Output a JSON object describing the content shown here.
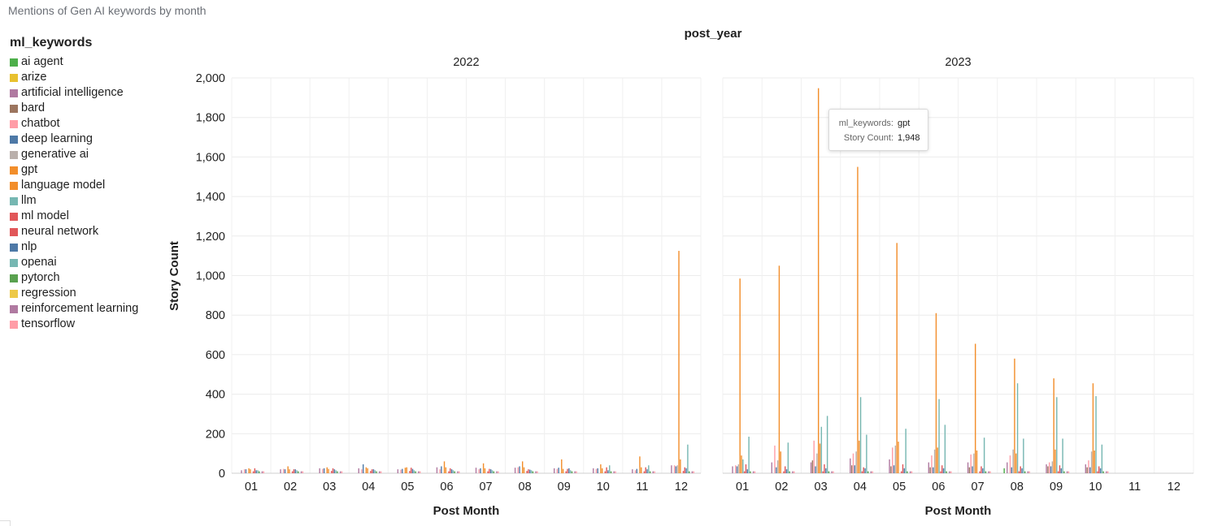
{
  "header": {
    "title": "Mentions of Gen AI keywords by month"
  },
  "legend": {
    "title": "ml_keywords",
    "items": [
      {
        "label": "ai agent",
        "color": "#4daf4a"
      },
      {
        "label": "arize",
        "color": "#e8c12f"
      },
      {
        "label": "artificial intelligence",
        "color": "#b07aa1"
      },
      {
        "label": "bard",
        "color": "#9c755f"
      },
      {
        "label": "chatbot",
        "color": "#ff9da7"
      },
      {
        "label": "deep learning",
        "color": "#4e79a7"
      },
      {
        "label": "generative ai",
        "color": "#bab0ac"
      },
      {
        "label": "gpt",
        "color": "#f28e2b"
      },
      {
        "label": "language model",
        "color": "#f28e2b"
      },
      {
        "label": "llm",
        "color": "#76b7b2"
      },
      {
        "label": "ml model",
        "color": "#e15759"
      },
      {
        "label": "neural network",
        "color": "#e15759"
      },
      {
        "label": "nlp",
        "color": "#4e79a7"
      },
      {
        "label": "openai",
        "color": "#76b7b2"
      },
      {
        "label": "pytorch",
        "color": "#59a14f"
      },
      {
        "label": "regression",
        "color": "#edc948"
      },
      {
        "label": "reinforcement learning",
        "color": "#b07aa1"
      },
      {
        "label": "tensorflow",
        "color": "#ff9da7"
      }
    ]
  },
  "tooltip": {
    "key1": "ml_keywords:",
    "val1": "gpt",
    "key2": "Story Count:",
    "val2": "1,948"
  },
  "chart_data": {
    "type": "bar",
    "column_header": "post_year",
    "panels": [
      "2022",
      "2023"
    ],
    "xlabel": "Post Month",
    "ylabel": "Story Count",
    "ylim": [
      0,
      2000
    ],
    "yticks": [
      0,
      200,
      400,
      600,
      800,
      1000,
      1200,
      1400,
      1600,
      1800,
      2000
    ],
    "ytick_labels": [
      "0",
      "200",
      "400",
      "600",
      "800",
      "1,000",
      "1,200",
      "1,400",
      "1,600",
      "1,800",
      "2,000"
    ],
    "categories": [
      "01",
      "02",
      "03",
      "04",
      "05",
      "06",
      "07",
      "08",
      "09",
      "10",
      "11",
      "12"
    ],
    "grid": true,
    "legend_position": "left",
    "series": [
      {
        "name": "ai agent",
        "2022": [
          0,
          0,
          0,
          0,
          0,
          0,
          0,
          0,
          0,
          0,
          0,
          0
        ],
        "2023": [
          0,
          0,
          0,
          0,
          0,
          0,
          0,
          25,
          0,
          0,
          0,
          0
        ]
      },
      {
        "name": "arize",
        "2022": [
          0,
          0,
          0,
          0,
          0,
          0,
          0,
          0,
          0,
          0,
          0,
          0
        ],
        "2023": [
          0,
          0,
          0,
          0,
          0,
          0,
          0,
          0,
          0,
          0,
          0,
          0
        ]
      },
      {
        "name": "artificial intelligence",
        "2022": [
          15,
          20,
          25,
          25,
          20,
          30,
          28,
          28,
          25,
          25,
          20,
          40
        ],
        "2023": [
          35,
          55,
          55,
          75,
          70,
          55,
          55,
          55,
          45,
          45,
          0,
          0
        ]
      },
      {
        "name": "bard",
        "2022": [
          0,
          0,
          0,
          0,
          0,
          0,
          0,
          0,
          0,
          0,
          0,
          0
        ],
        "2023": [
          0,
          0,
          65,
          40,
          35,
          30,
          30,
          0,
          35,
          30,
          0,
          0
        ]
      },
      {
        "name": "chatbot",
        "2022": [
          20,
          22,
          22,
          20,
          18,
          20,
          20,
          30,
          22,
          22,
          15,
          40
        ],
        "2023": [
          40,
          140,
          165,
          100,
          130,
          90,
          95,
          90,
          55,
          65,
          0,
          0
        ]
      },
      {
        "name": "deep learning",
        "2022": [
          20,
          20,
          25,
          45,
          22,
          35,
          25,
          35,
          28,
          25,
          22,
          35
        ],
        "2023": [
          35,
          30,
          35,
          40,
          40,
          30,
          35,
          30,
          35,
          30,
          0,
          0
        ]
      },
      {
        "name": "generative ai",
        "2022": [
          0,
          0,
          0,
          0,
          0,
          0,
          0,
          0,
          0,
          0,
          0,
          40
        ],
        "2023": [
          45,
          65,
          100,
          110,
          140,
          120,
          100,
          120,
          60,
          110,
          0,
          0
        ]
      },
      {
        "name": "gpt",
        "2022": [
          25,
          35,
          30,
          30,
          28,
          60,
          50,
          60,
          70,
          45,
          85,
          1125
        ],
        "2023": [
          985,
          1050,
          1948,
          1550,
          1165,
          810,
          655,
          580,
          480,
          455,
          0,
          0
        ]
      },
      {
        "name": "language model",
        "2022": [
          20,
          20,
          22,
          25,
          30,
          30,
          25,
          30,
          22,
          25,
          30,
          70
        ],
        "2023": [
          90,
          110,
          150,
          165,
          160,
          130,
          115,
          100,
          120,
          115,
          0,
          0
        ]
      },
      {
        "name": "llm",
        "2022": [
          0,
          0,
          0,
          0,
          0,
          0,
          0,
          0,
          0,
          0,
          0,
          0
        ],
        "2023": [
          70,
          0,
          235,
          385,
          0,
          375,
          0,
          455,
          385,
          390,
          0,
          0
        ]
      },
      {
        "name": "ml model",
        "2022": [
          10,
          10,
          12,
          12,
          12,
          10,
          10,
          12,
          10,
          10,
          10,
          12
        ],
        "2023": [
          10,
          10,
          10,
          10,
          10,
          10,
          10,
          10,
          10,
          10,
          0,
          0
        ]
      },
      {
        "name": "neural network",
        "2022": [
          25,
          20,
          25,
          20,
          28,
          25,
          22,
          20,
          22,
          30,
          30,
          30
        ],
        "2023": [
          45,
          35,
          45,
          30,
          45,
          40,
          35,
          35,
          40,
          35,
          0,
          0
        ]
      },
      {
        "name": "nlp",
        "2022": [
          15,
          20,
          20,
          20,
          22,
          20,
          20,
          18,
          25,
          15,
          20,
          25
        ],
        "2023": [
          20,
          20,
          25,
          25,
          25,
          25,
          25,
          25,
          25,
          25,
          0,
          0
        ]
      },
      {
        "name": "openai",
        "2022": [
          15,
          15,
          15,
          15,
          15,
          15,
          15,
          15,
          15,
          40,
          40,
          145
        ],
        "2023": [
          185,
          155,
          290,
          195,
          225,
          245,
          180,
          175,
          175,
          145,
          0,
          0
        ]
      },
      {
        "name": "pytorch",
        "2022": [
          10,
          10,
          10,
          10,
          10,
          10,
          10,
          10,
          10,
          10,
          10,
          10
        ],
        "2023": [
          10,
          10,
          10,
          10,
          10,
          10,
          10,
          10,
          10,
          10,
          0,
          0
        ]
      },
      {
        "name": "regression",
        "2022": [
          0,
          0,
          0,
          0,
          0,
          0,
          0,
          0,
          0,
          0,
          0,
          0
        ],
        "2023": [
          0,
          0,
          0,
          0,
          0,
          0,
          0,
          0,
          0,
          0,
          0,
          0
        ]
      },
      {
        "name": "reinforcement learning",
        "2022": [
          10,
          10,
          10,
          10,
          10,
          10,
          10,
          10,
          10,
          10,
          10,
          10
        ],
        "2023": [
          10,
          10,
          10,
          10,
          10,
          10,
          10,
          10,
          10,
          10,
          0,
          0
        ]
      },
      {
        "name": "tensorflow",
        "2022": [
          10,
          10,
          10,
          10,
          10,
          10,
          10,
          10,
          10,
          10,
          10,
          10
        ],
        "2023": [
          10,
          10,
          10,
          10,
          10,
          10,
          10,
          10,
          10,
          10,
          0,
          0
        ]
      }
    ]
  }
}
